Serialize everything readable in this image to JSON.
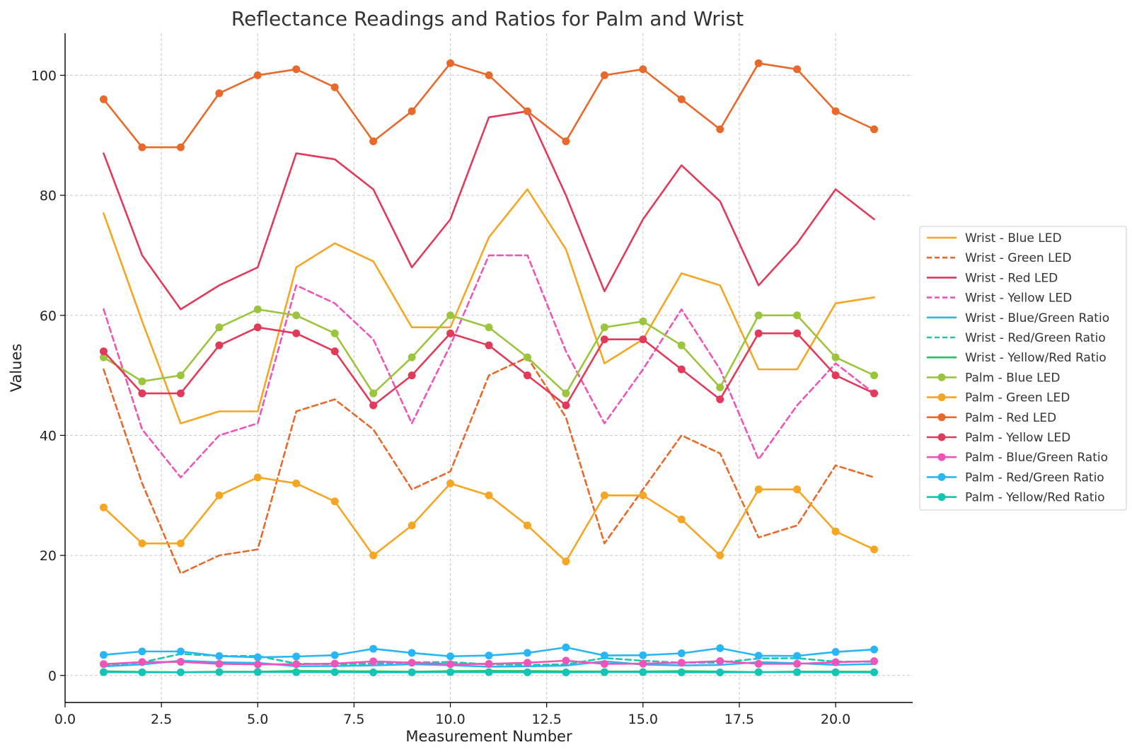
{
  "chart_data": {
    "type": "line",
    "title": "Reflectance Readings and Ratios for Palm and Wrist",
    "xlabel": "Measurement Number",
    "ylabel": "Values",
    "xlim": [
      0,
      22
    ],
    "ylim": [
      -4.5,
      107
    ],
    "x_ticks": [
      0,
      2.5,
      5,
      7.5,
      10,
      12.5,
      15,
      17.5,
      20
    ],
    "x_tick_labels": [
      "0.0",
      "2.5",
      "5.0",
      "7.5",
      "10.0",
      "12.5",
      "15.0",
      "17.5",
      "20.0"
    ],
    "y_ticks": [
      0,
      20,
      40,
      60,
      80,
      100
    ],
    "y_tick_labels": [
      "0",
      "20",
      "40",
      "60",
      "80",
      "100"
    ],
    "grid": true,
    "legend_position": "right",
    "x": [
      1,
      2,
      3,
      4,
      5,
      6,
      7,
      8,
      9,
      10,
      11,
      12,
      13,
      14,
      15,
      16,
      17,
      18,
      19,
      20,
      21
    ],
    "series": [
      {
        "name": "Wrist - Blue LED",
        "color": "#F5A623",
        "dash": false,
        "markers": false,
        "values": [
          77,
          59,
          42,
          44,
          44,
          68,
          72,
          69,
          58,
          58,
          73,
          81,
          71,
          52,
          56,
          67,
          65,
          51,
          51,
          62,
          63
        ]
      },
      {
        "name": "Wrist - Green LED",
        "color": "#E8692A",
        "dash": true,
        "markers": false,
        "values": [
          51,
          32,
          17,
          20,
          21,
          44,
          46,
          41,
          31,
          34,
          50,
          53,
          43,
          22,
          31,
          40,
          37,
          23,
          25,
          35,
          33
        ]
      },
      {
        "name": "Wrist - Red LED",
        "color": "#E23A5A",
        "dash": false,
        "markers": false,
        "values": [
          87,
          70,
          61,
          65,
          68,
          87,
          86,
          81,
          68,
          76,
          93,
          94,
          80,
          64,
          76,
          85,
          79,
          65,
          72,
          81,
          76
        ]
      },
      {
        "name": "Wrist - Yellow LED",
        "color": "#EE55BB",
        "dash": true,
        "markers": false,
        "values": [
          61,
          41,
          33,
          40,
          42,
          65,
          62,
          56,
          42,
          55,
          70,
          70,
          54,
          42,
          51,
          61,
          51,
          36,
          45,
          52,
          47
        ]
      },
      {
        "name": "Wrist - Blue/Green Ratio",
        "color": "#29B6F6",
        "dash": false,
        "markers": false,
        "values": [
          1.51,
          1.84,
          2.47,
          2.2,
          2.1,
          1.55,
          1.57,
          1.68,
          1.87,
          1.71,
          1.46,
          1.53,
          1.65,
          2.36,
          1.81,
          1.68,
          1.76,
          2.22,
          2.04,
          1.77,
          1.91
        ]
      },
      {
        "name": "Wrist - Red/Green Ratio",
        "color": "#1BC9A8",
        "dash": true,
        "markers": false,
        "values": [
          1.71,
          2.19,
          3.59,
          3.25,
          3.24,
          1.98,
          1.87,
          1.98,
          2.19,
          2.24,
          1.86,
          1.77,
          1.86,
          2.91,
          2.45,
          2.13,
          2.14,
          2.83,
          2.88,
          2.31,
          2.3
        ]
      },
      {
        "name": "Wrist - Yellow/Red Ratio",
        "color": "#22C55E",
        "dash": false,
        "markers": false,
        "values": [
          0.7,
          0.59,
          0.54,
          0.62,
          0.62,
          0.75,
          0.72,
          0.69,
          0.62,
          0.72,
          0.75,
          0.74,
          0.68,
          0.66,
          0.67,
          0.72,
          0.65,
          0.55,
          0.63,
          0.64,
          0.62
        ]
      },
      {
        "name": "Palm - Blue LED",
        "color": "#9BC53D",
        "dash": false,
        "markers": true,
        "values": [
          53,
          49,
          50,
          58,
          61,
          60,
          57,
          47,
          53,
          60,
          58,
          53,
          47,
          58,
          59,
          55,
          48,
          60,
          60,
          53,
          50
        ]
      },
      {
        "name": "Palm - Green LED",
        "color": "#F5A623",
        "dash": false,
        "markers": true,
        "values": [
          28,
          22,
          22,
          30,
          33,
          32,
          29,
          20,
          25,
          32,
          30,
          25,
          19,
          30,
          30,
          26,
          20,
          31,
          31,
          24,
          21
        ]
      },
      {
        "name": "Palm - Red LED",
        "color": "#E8692A",
        "dash": false,
        "markers": true,
        "values": [
          96,
          88,
          88,
          97,
          100,
          101,
          98,
          89,
          94,
          102,
          100,
          94,
          89,
          100,
          101,
          96,
          91,
          102,
          101,
          94,
          91
        ]
      },
      {
        "name": "Palm - Yellow LED",
        "color": "#E23A5A",
        "dash": false,
        "markers": true,
        "values": [
          54,
          47,
          47,
          55,
          58,
          57,
          54,
          45,
          50,
          57,
          55,
          50,
          45,
          56,
          56,
          51,
          46,
          57,
          57,
          50,
          47
        ]
      },
      {
        "name": "Palm - Blue/Green Ratio",
        "color": "#EE55BB",
        "dash": false,
        "markers": true,
        "values": [
          1.89,
          2.23,
          2.27,
          1.93,
          1.85,
          1.88,
          1.97,
          2.35,
          2.12,
          1.88,
          1.93,
          2.12,
          2.47,
          1.93,
          1.97,
          2.12,
          2.4,
          1.94,
          1.94,
          2.21,
          2.38
        ]
      },
      {
        "name": "Palm - Red/Green Ratio",
        "color": "#29B6F6",
        "dash": false,
        "markers": true,
        "values": [
          3.43,
          4.0,
          4.0,
          3.23,
          3.03,
          3.16,
          3.38,
          4.45,
          3.76,
          3.19,
          3.33,
          3.76,
          4.68,
          3.33,
          3.37,
          3.69,
          4.55,
          3.29,
          3.26,
          3.92,
          4.33
        ]
      },
      {
        "name": "Palm - Yellow/Red Ratio",
        "color": "#14C4B4",
        "dash": false,
        "markers": true,
        "values": [
          0.56,
          0.53,
          0.53,
          0.57,
          0.58,
          0.56,
          0.55,
          0.51,
          0.53,
          0.56,
          0.55,
          0.53,
          0.51,
          0.56,
          0.55,
          0.53,
          0.51,
          0.56,
          0.56,
          0.53,
          0.52
        ]
      }
    ]
  }
}
